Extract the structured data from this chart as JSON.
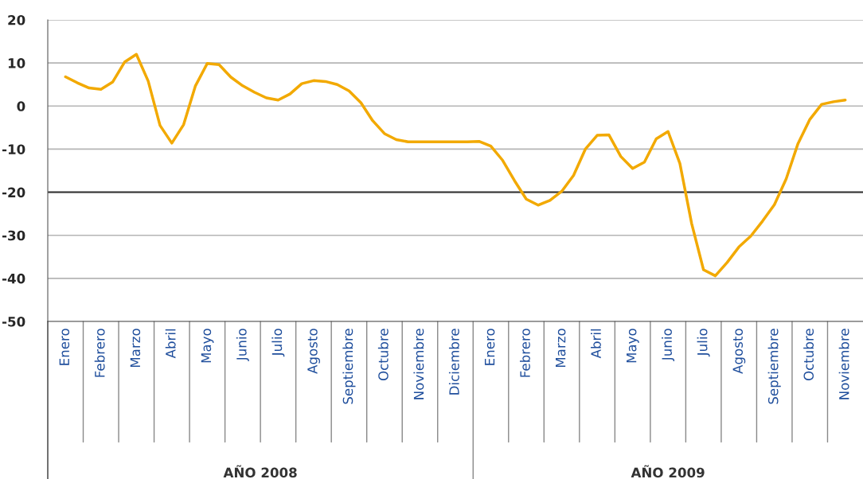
{
  "chart_data": {
    "type": "line",
    "categories": [
      null,
      "Enero",
      null,
      null,
      "Febrero",
      null,
      null,
      "Marzo",
      null,
      null,
      "Abril",
      null,
      null,
      "Mayo",
      null,
      null,
      "Junio",
      null,
      null,
      "Julio",
      null,
      null,
      "Agosto",
      null,
      null,
      "Septiembre",
      null,
      null,
      "Octubre",
      null,
      null,
      "Noviembre",
      null,
      null,
      "Diciembre",
      null,
      null,
      "Enero",
      null,
      null,
      "Febrero",
      null,
      null,
      "Marzo",
      null,
      null,
      "Abril",
      null,
      null,
      "Mayo",
      null,
      null,
      "Junio",
      null,
      null,
      "Julio",
      null,
      null,
      "Agosto",
      null,
      null,
      "Septiembre",
      null,
      null,
      "Octubre",
      null,
      null,
      "Noviembre",
      null
    ],
    "series": [
      {
        "color": "#f2a900",
        "values": [
          null,
          6.8,
          5.4,
          4.2,
          3.9,
          5.6,
          10.2,
          12.0,
          5.8,
          -4.5,
          -8.6,
          -4.3,
          4.7,
          9.9,
          9.6,
          6.7,
          4.7,
          3.2,
          1.9,
          1.4,
          2.8,
          5.2,
          5.9,
          5.7,
          5.0,
          3.5,
          0.8,
          -3.4,
          -6.4,
          -7.8,
          -8.3,
          -8.3,
          -8.3,
          -8.3,
          -8.3,
          -8.3,
          -8.2,
          -9.3,
          -12.6,
          -17.3,
          -21.6,
          -23.0,
          -21.9,
          -19.8,
          -16.1,
          -10.0,
          -6.8,
          -6.7,
          -11.7,
          -14.5,
          -13.0,
          -7.6,
          -5.9,
          -13.3,
          -27.3,
          -38.0,
          -39.4,
          -36.3,
          -32.7,
          -30.2,
          -26.7,
          -22.9,
          -16.9,
          -8.7,
          -3.1,
          0.4,
          1.0,
          1.4,
          null
        ]
      }
    ],
    "ylim": [
      -50,
      20
    ],
    "yticks": [
      -50,
      -40,
      -30,
      -20,
      -10,
      0,
      10,
      20
    ],
    "grid": "y",
    "ref_lines": [
      {
        "axis": "y",
        "value": -20,
        "color": "#333333"
      }
    ],
    "annotations": [
      "AÑO 2008",
      "AÑO 2009"
    ],
    "line_style": "solid"
  }
}
